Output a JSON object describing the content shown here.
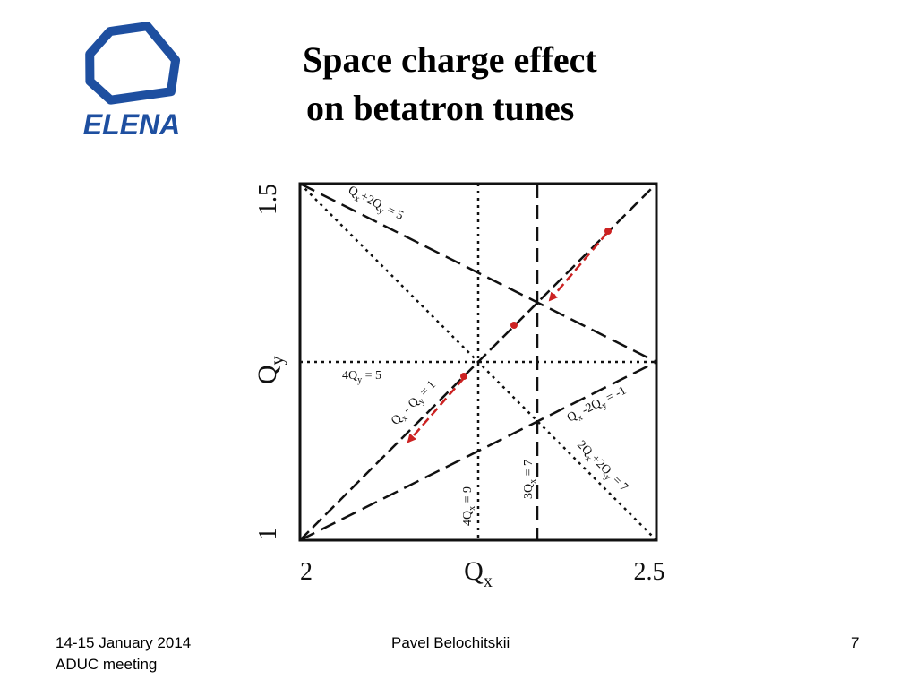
{
  "slide": {
    "title_line1": "Space charge effect",
    "title_line2": "on betatron tunes"
  },
  "logo": {
    "text": "ELENA",
    "icon": "elena-hexagon-logo",
    "color": "#1e4fa0"
  },
  "diagram": {
    "x_axis": {
      "label_main": "Q",
      "label_sub": "x",
      "min_label": "2",
      "max_label": "2.5"
    },
    "y_axis": {
      "label_main": "Q",
      "label_sub": "y",
      "min_label": "1",
      "max_label": "1.5"
    },
    "resonance_labels": {
      "qx_plus_2qy": {
        "a": "Q",
        "as": "x",
        "b": "+2Q",
        "bs": "y",
        "c": " = 5"
      },
      "four_qy": {
        "a": "4Q",
        "as": "y",
        "c": " = 5"
      },
      "qx_minus_qy": {
        "a": "Q",
        "as": "x",
        "b": " - Q",
        "bs": "y",
        "c": " = 1"
      },
      "qx_minus_2qy": {
        "a": "Q",
        "as": "x",
        "b": " -2Q",
        "bs": "y",
        "c": " = -1"
      },
      "two_qx_plus_2qy": {
        "a": "2Q",
        "as": "x",
        "b": "+2Q",
        "bs": "y",
        "c": " = 7"
      },
      "three_qx": {
        "a": "3Q",
        "as": "x",
        "c": " = 7"
      },
      "four_qx": {
        "a": "4Q",
        "as": "x",
        "c": " = 9"
      }
    },
    "arrow_color": "#cc2222"
  },
  "footer": {
    "date": "14-15 January 2014",
    "meeting": "ADUC meeting",
    "author": "Pavel Belochitskii",
    "page": "7"
  }
}
